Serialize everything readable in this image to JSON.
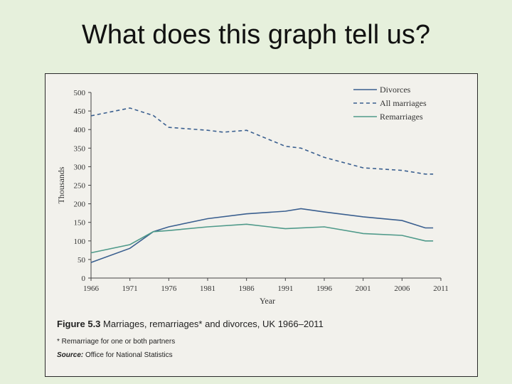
{
  "slide": {
    "title": "What does this graph tell us?"
  },
  "caption": {
    "figure_label": "Figure 5.3",
    "figure_title": "Marriages, remarriages* and divorces, UK 1966–2011",
    "footnote": "* Remarriage for one or both partners",
    "source_label": "Source:",
    "source_text": "Office for National Statistics"
  },
  "chart_data": {
    "type": "line",
    "title": "",
    "xlabel": "Year",
    "ylabel": "Thousands",
    "xlim": [
      1966,
      2011
    ],
    "ylim": [
      0,
      500
    ],
    "xticks": [
      1966,
      1971,
      1976,
      1981,
      1986,
      1991,
      1996,
      2001,
      2006,
      2011
    ],
    "yticks": [
      0,
      50,
      100,
      150,
      200,
      250,
      300,
      350,
      400,
      450,
      500
    ],
    "legend_position": "top-right",
    "grid": false,
    "series": [
      {
        "name": "Divorces",
        "style": "solid",
        "color": "#3a5f8f",
        "x": [
          1966,
          1971,
          1974,
          1976,
          1981,
          1986,
          1991,
          1993,
          1996,
          2001,
          2006,
          2009,
          2010
        ],
        "y": [
          42,
          80,
          125,
          138,
          160,
          173,
          180,
          187,
          178,
          165,
          155,
          135,
          135
        ]
      },
      {
        "name": "All marriages",
        "style": "dashed",
        "color": "#3a5f8f",
        "x": [
          1966,
          1971,
          1974,
          1976,
          1981,
          1983,
          1986,
          1991,
          1993,
          1996,
          2001,
          2006,
          2009,
          2010
        ],
        "y": [
          437,
          458,
          438,
          406,
          398,
          393,
          398,
          355,
          350,
          325,
          297,
          290,
          280,
          280
        ]
      },
      {
        "name": "Remarriages",
        "style": "solid",
        "color": "#4f9a8a",
        "x": [
          1966,
          1971,
          1974,
          1976,
          1981,
          1986,
          1991,
          1996,
          2001,
          2006,
          2009,
          2010
        ],
        "y": [
          68,
          90,
          125,
          128,
          138,
          145,
          133,
          138,
          120,
          115,
          100,
          100
        ]
      }
    ]
  }
}
